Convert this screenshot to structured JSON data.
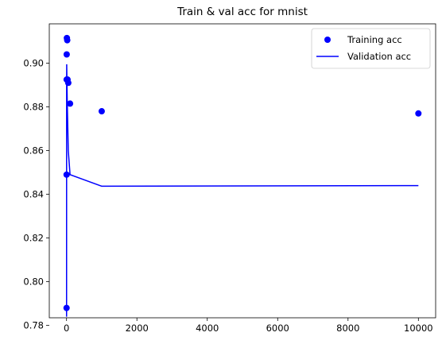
{
  "chart_data": {
    "type": "scatter",
    "title": "Train & val acc for mnist",
    "xlabel": "",
    "ylabel": "",
    "xlim": [
      -490,
      10490
    ],
    "ylim": [
      0.7835,
      0.918
    ],
    "xticks": [
      0,
      2000,
      4000,
      6000,
      8000,
      10000
    ],
    "xtick_labels": [
      "0",
      "2000",
      "4000",
      "6000",
      "8000",
      "10000"
    ],
    "yticks": [
      0.78,
      0.8,
      0.82,
      0.84,
      0.86,
      0.88,
      0.9
    ],
    "ytick_labels": [
      "0.78",
      "0.80",
      "0.82",
      "0.84",
      "0.86",
      "0.88",
      "0.90"
    ],
    "grid": false,
    "legend_position": "top-right",
    "series": [
      {
        "name": "Training acc",
        "style": "markers",
        "color": "#0000ff",
        "x": [
          1,
          2,
          3,
          5,
          10,
          20,
          30,
          50,
          100,
          1000,
          10000
        ],
        "y": [
          0.788,
          0.849,
          0.8925,
          0.904,
          0.9115,
          0.9105,
          0.8925,
          0.891,
          0.8815,
          0.878,
          0.877
        ]
      },
      {
        "name": "Validation acc",
        "style": "line",
        "color": "#0000ff",
        "x": [
          1,
          2,
          3,
          5,
          10,
          20,
          30,
          50,
          100,
          1000,
          10000
        ],
        "y": [
          0.784,
          0.848,
          0.8895,
          0.8995,
          0.8935,
          0.8825,
          0.875,
          0.86,
          0.849,
          0.8437,
          0.844
        ]
      }
    ]
  }
}
